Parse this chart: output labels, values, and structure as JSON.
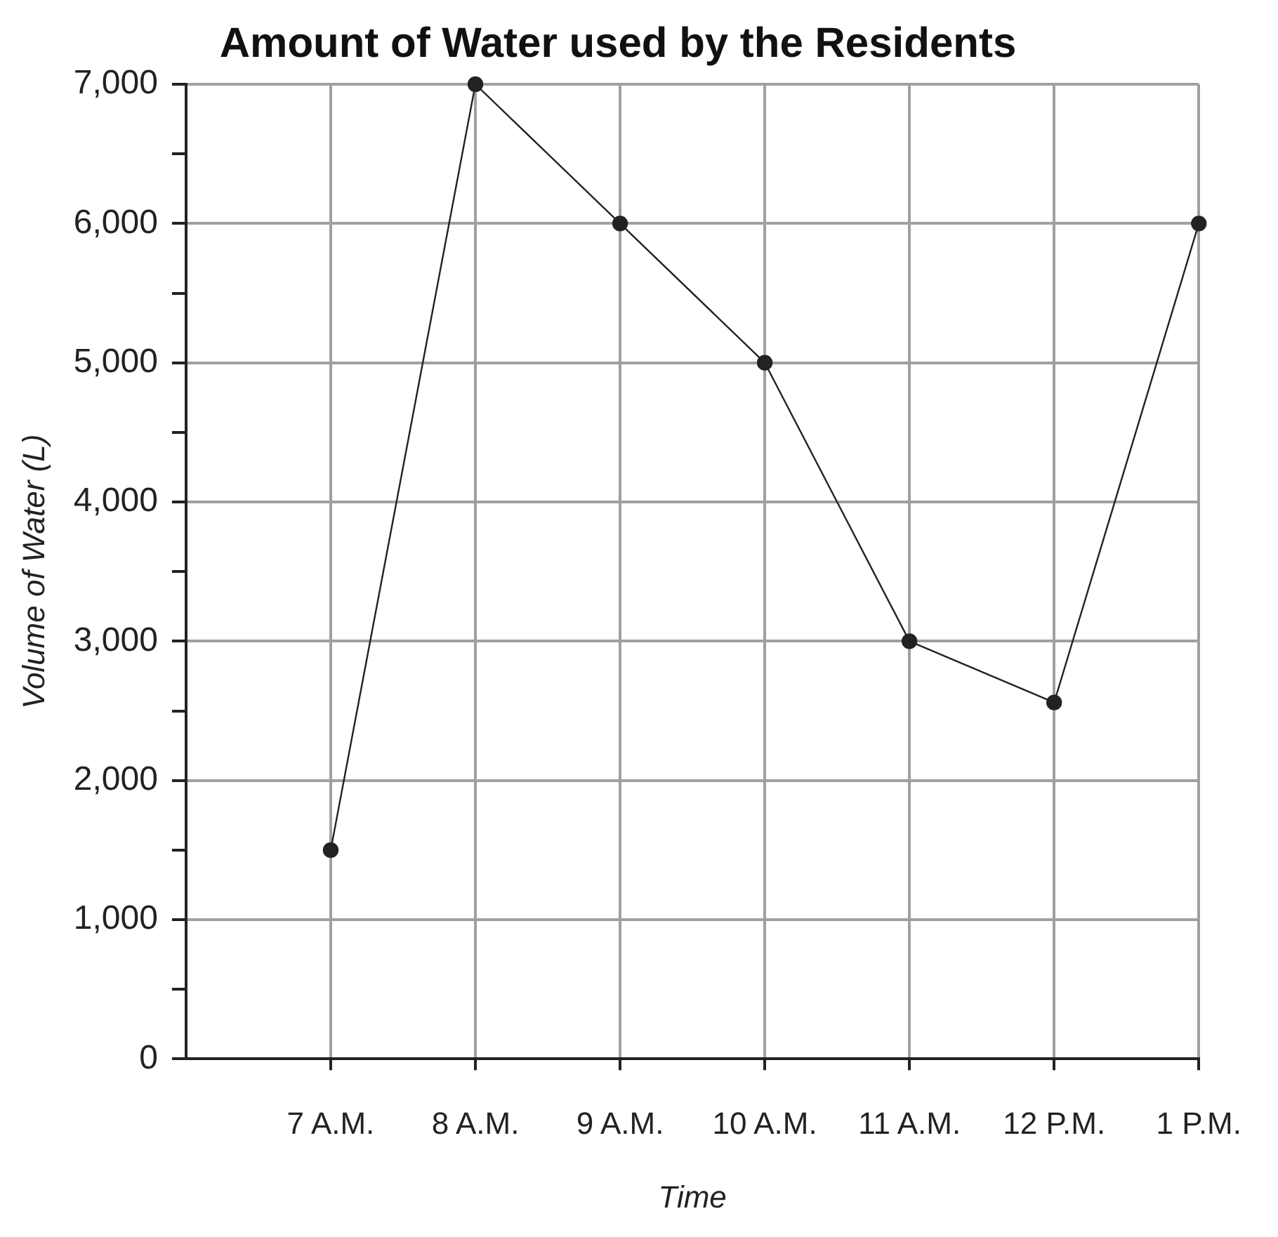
{
  "chart_data": {
    "type": "line",
    "title": "Amount of Water used by the Residents",
    "xlabel": "Time",
    "ylabel": "Volume of Water (L)",
    "categories": [
      "7 A.M.",
      "8 A.M.",
      "9 A.M.",
      "10 A.M.",
      "11 A.M.",
      "12 P.M.",
      "1 P.M."
    ],
    "series": [
      {
        "color": "#222222",
        "values": [
          1500,
          7000,
          6000,
          5000,
          3000,
          2560,
          6000
        ]
      }
    ],
    "ylim": [
      0,
      7000
    ],
    "yticks": [
      0,
      {
        "value": 500,
        "label": null
      },
      {
        "value": 1000,
        "label": "1,000"
      },
      {
        "value": 1500,
        "label": null
      },
      {
        "value": 2000,
        "label": "2,000"
      },
      {
        "value": 2500,
        "label": null
      },
      {
        "value": 3000,
        "label": "3,000"
      },
      {
        "value": 3500,
        "label": null
      },
      {
        "value": 4000,
        "label": "4,000"
      },
      {
        "value": 4500,
        "label": null
      },
      {
        "value": 5000,
        "label": "5,000"
      },
      {
        "value": 5500,
        "label": null
      },
      {
        "value": 6000,
        "label": "6,000"
      },
      {
        "value": 6500,
        "label": null
      },
      {
        "value": 7000,
        "label": "7,000"
      }
    ],
    "grid": true,
    "legend": false,
    "marker": "circle",
    "line_style": "solid"
  }
}
